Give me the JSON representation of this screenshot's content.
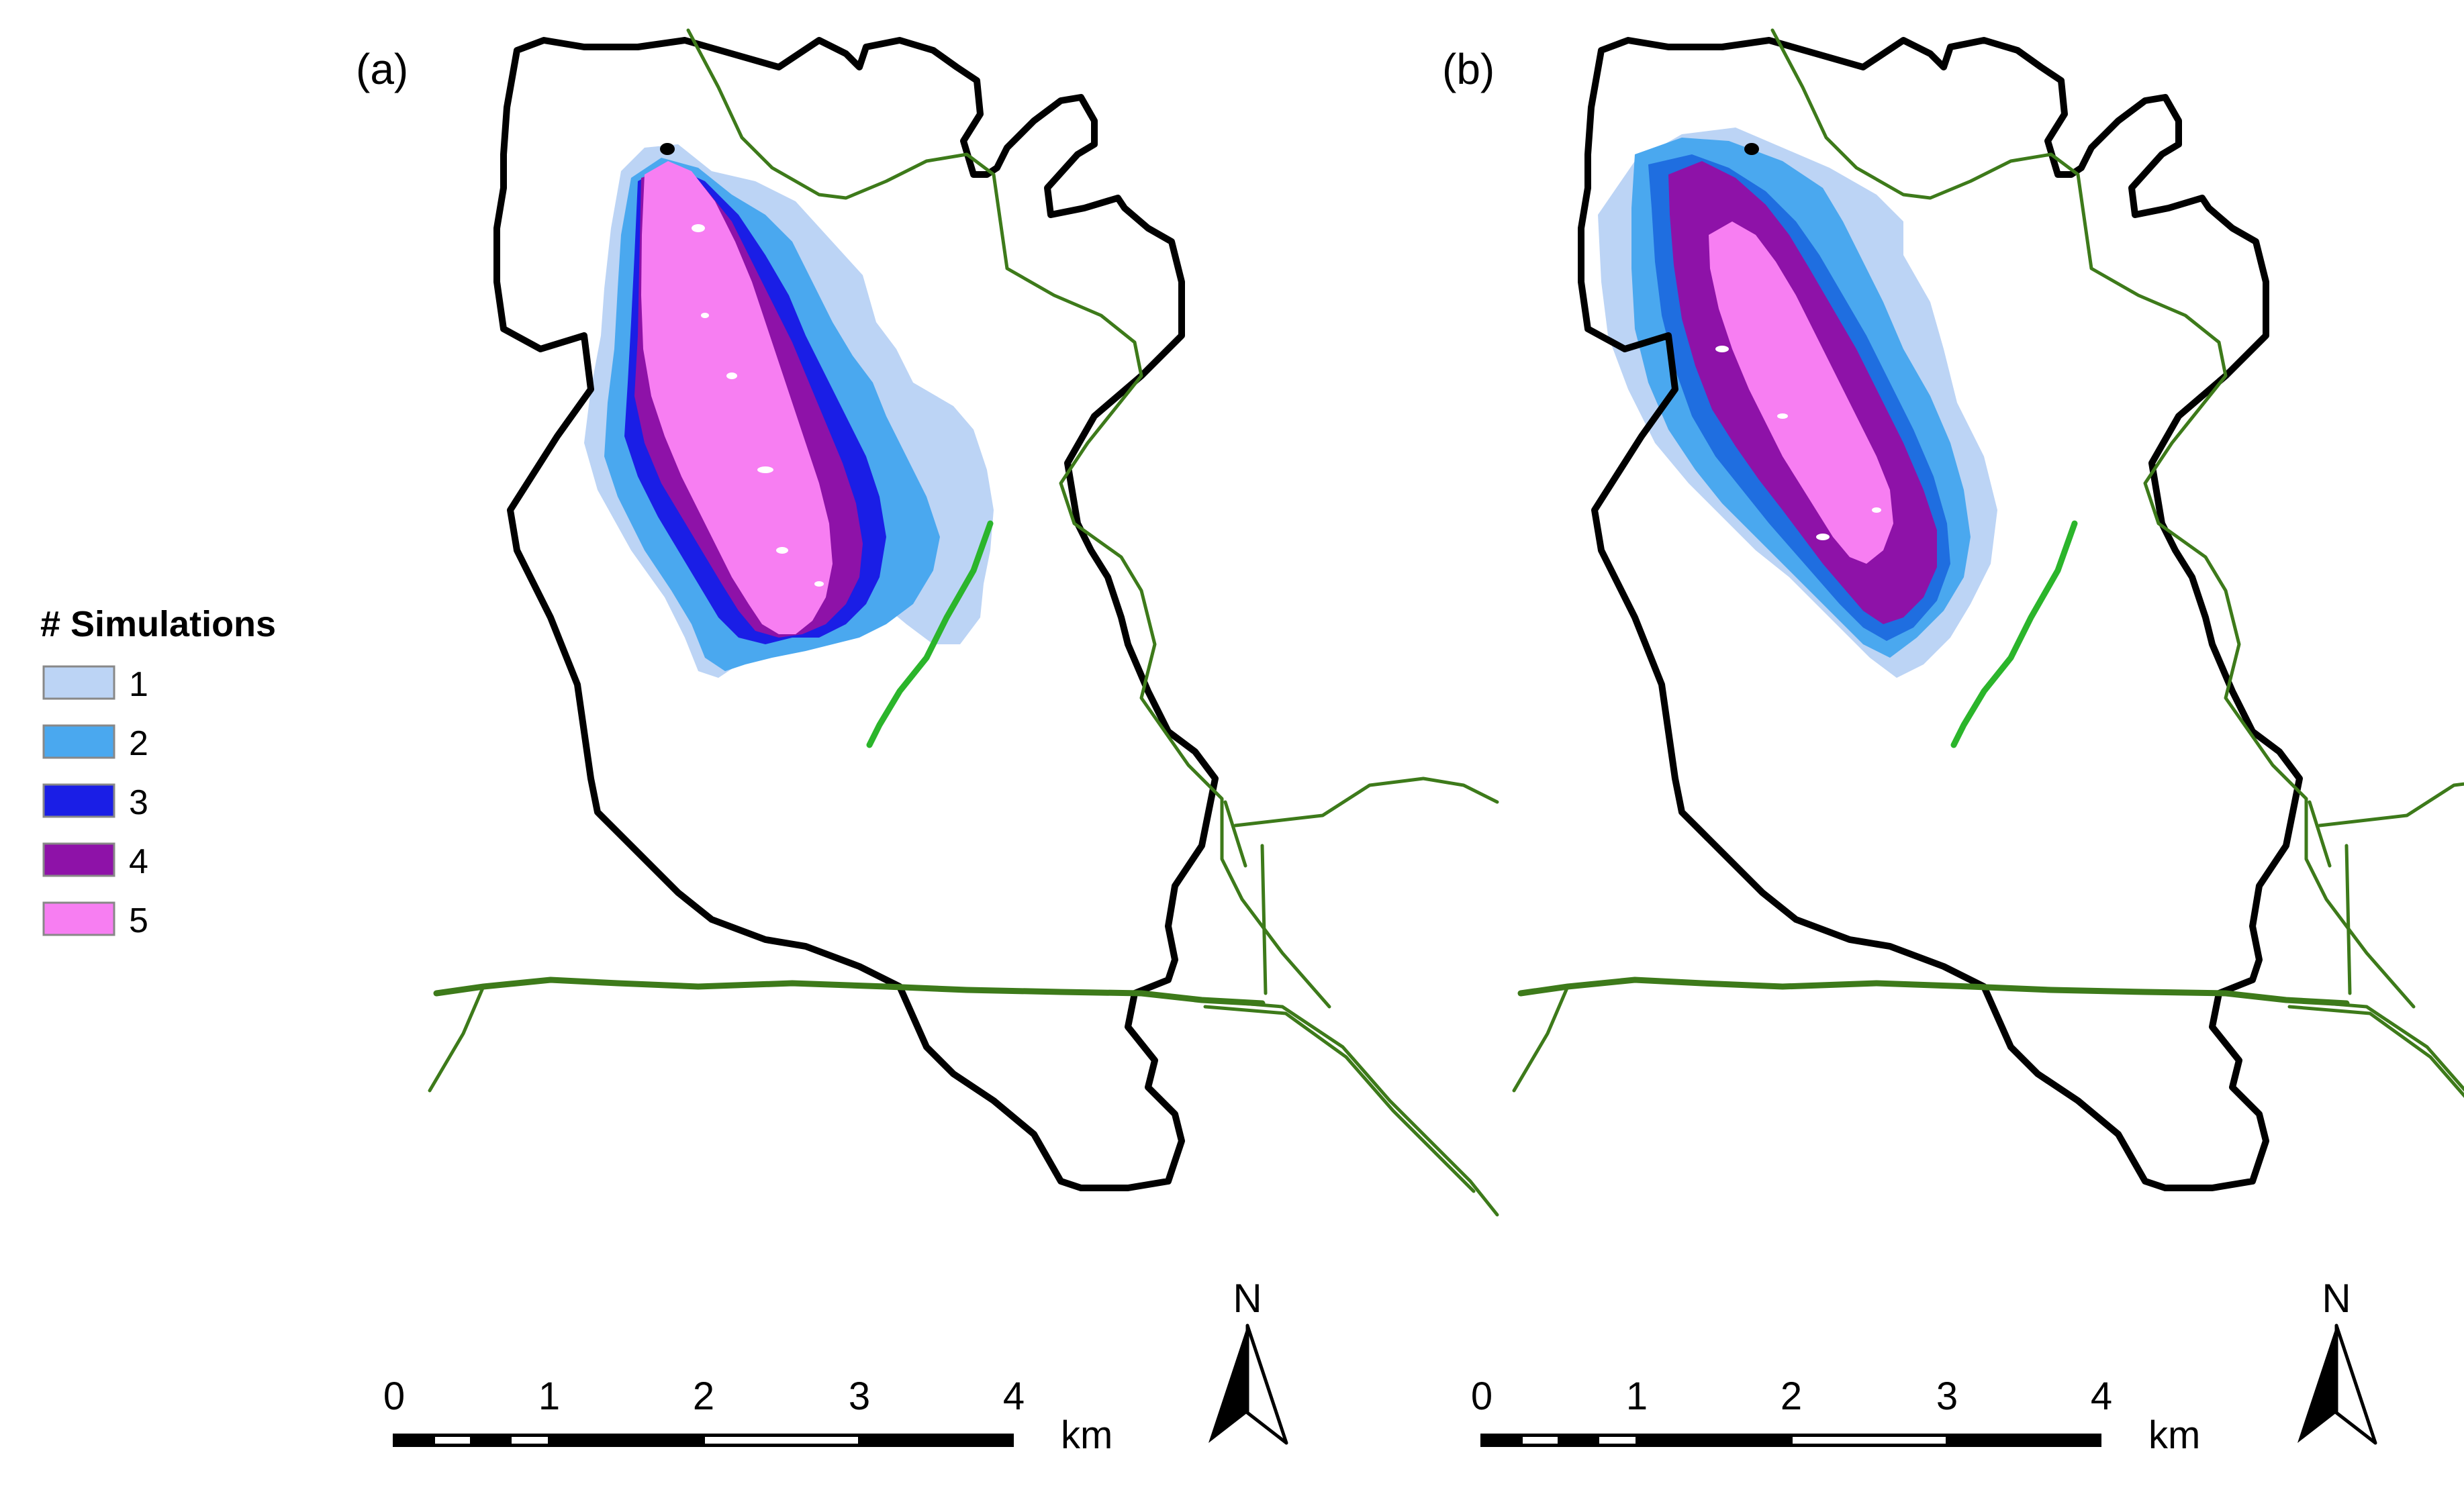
{
  "panels": [
    {
      "id": "a",
      "label": "(a)"
    },
    {
      "id": "b",
      "label": "(b)"
    }
  ],
  "legend": {
    "title": "# Simulations",
    "items": [
      {
        "label": "1",
        "color": "#bcd4f5"
      },
      {
        "label": "2",
        "color": "#4aa8ef"
      },
      {
        "label": "3",
        "color": "#1a1ee6"
      },
      {
        "label": "4",
        "color": "#8e12a8"
      },
      {
        "label": "5",
        "color": "#f77ef2"
      }
    ]
  },
  "scale_bar": {
    "ticks": [
      "0",
      "1",
      "2",
      "3",
      "4"
    ],
    "unit": "km"
  },
  "north_arrow": {
    "letter": "N"
  },
  "colors": {
    "boundary": "#000000",
    "roads": "#3d7a1a",
    "road_highlight": "#2bb52b"
  }
}
